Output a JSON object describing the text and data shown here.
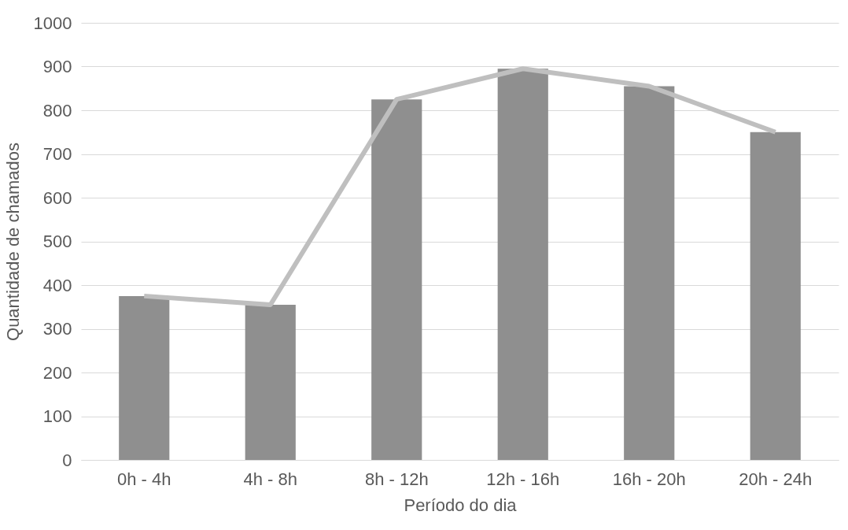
{
  "chart_data": {
    "type": "bar",
    "xlabel": "Período do dia",
    "ylabel": "Quantidade de chamados",
    "categories": [
      "0h - 4h",
      "4h - 8h",
      "8h - 12h",
      "12h - 16h",
      "16h - 20h",
      "20h - 24h"
    ],
    "series": [
      {
        "color": "#8f8f8f",
        "values": [
          375,
          355,
          825,
          895,
          855,
          750
        ]
      },
      {
        "type": "line",
        "color": "#bfbfbf",
        "values": [
          375,
          355,
          825,
          895,
          855,
          750
        ]
      }
    ],
    "ylim": [
      0,
      1000
    ],
    "yticks": [
      0,
      100,
      200,
      300,
      400,
      500,
      600,
      700,
      800,
      900,
      1000
    ],
    "grid": "y"
  }
}
